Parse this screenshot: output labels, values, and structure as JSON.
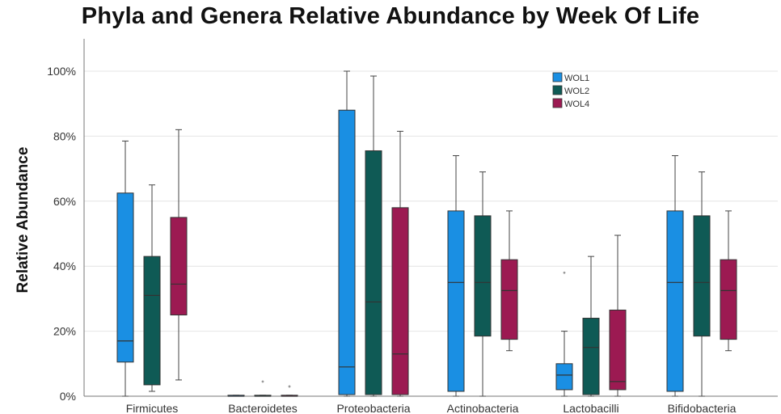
{
  "chart_data": {
    "type": "box",
    "title": "Phyla and Genera Relative Abundance by Week Of Life",
    "ylabel": "Relative Abundance",
    "xlabel": "",
    "ylim": [
      0,
      100
    ],
    "y_ticks": [
      {
        "value": 0,
        "label": "0%"
      },
      {
        "value": 20,
        "label": "20%"
      },
      {
        "value": 40,
        "label": "40%"
      },
      {
        "value": 60,
        "label": "60%"
      },
      {
        "value": 80,
        "label": "80%"
      },
      {
        "value": 100,
        "label": "100%"
      }
    ],
    "grid": true,
    "legend_position": "top-right",
    "categories": [
      "Firmicutes",
      "Bacteroidetes",
      "Proteobacteria",
      "Actinobacteria",
      "Lactobacilli",
      "Bifidobacteria"
    ],
    "series": [
      {
        "name": "WOL1",
        "color": "#1a8fe3",
        "boxes": [
          {
            "min": 0,
            "q1": 10.5,
            "median": 17,
            "q3": 62.5,
            "max": 78.5,
            "outliers": []
          },
          {
            "min": 0,
            "q1": 0,
            "median": 0,
            "q3": 0.3,
            "max": 0.3,
            "outliers": []
          },
          {
            "min": 0,
            "q1": 0.5,
            "median": 9,
            "q3": 88,
            "max": 100,
            "outliers": []
          },
          {
            "min": 0,
            "q1": 1.5,
            "median": 35,
            "q3": 57,
            "max": 74,
            "outliers": []
          },
          {
            "min": 0,
            "q1": 2,
            "median": 6.5,
            "q3": 10,
            "max": 20,
            "outliers": [
              38
            ]
          },
          {
            "min": 0,
            "q1": 1.5,
            "median": 35,
            "q3": 57,
            "max": 74,
            "outliers": []
          }
        ]
      },
      {
        "name": "WOL2",
        "color": "#0f5a55",
        "boxes": [
          {
            "min": 1.5,
            "q1": 3.5,
            "median": 31,
            "q3": 43,
            "max": 65,
            "outliers": []
          },
          {
            "min": 0,
            "q1": 0,
            "median": 0,
            "q3": 0.3,
            "max": 0.3,
            "outliers": [
              4.5
            ]
          },
          {
            "min": 0,
            "q1": 0.5,
            "median": 29,
            "q3": 75.5,
            "max": 98.5,
            "outliers": []
          },
          {
            "min": 0,
            "q1": 18.5,
            "median": 35,
            "q3": 55.5,
            "max": 69,
            "outliers": []
          },
          {
            "min": 0,
            "q1": 0.5,
            "median": 15,
            "q3": 24,
            "max": 43,
            "outliers": []
          },
          {
            "min": 0,
            "q1": 18.5,
            "median": 35,
            "q3": 55.5,
            "max": 69,
            "outliers": []
          }
        ]
      },
      {
        "name": "WOL4",
        "color": "#9c1a52",
        "boxes": [
          {
            "min": 5,
            "q1": 25,
            "median": 34.5,
            "q3": 55,
            "max": 82,
            "outliers": []
          },
          {
            "min": 0,
            "q1": 0,
            "median": 0,
            "q3": 0.3,
            "max": 0.3,
            "outliers": [
              3
            ]
          },
          {
            "min": 0,
            "q1": 0.5,
            "median": 13,
            "q3": 58,
            "max": 81.5,
            "outliers": []
          },
          {
            "min": 14,
            "q1": 17.5,
            "median": 32.5,
            "q3": 42,
            "max": 57,
            "outliers": []
          },
          {
            "min": 0,
            "q1": 2,
            "median": 4.5,
            "q3": 26.5,
            "max": 49.5,
            "outliers": []
          },
          {
            "min": 14,
            "q1": 17.5,
            "median": 32.5,
            "q3": 42,
            "max": 57,
            "outliers": []
          }
        ]
      }
    ]
  }
}
